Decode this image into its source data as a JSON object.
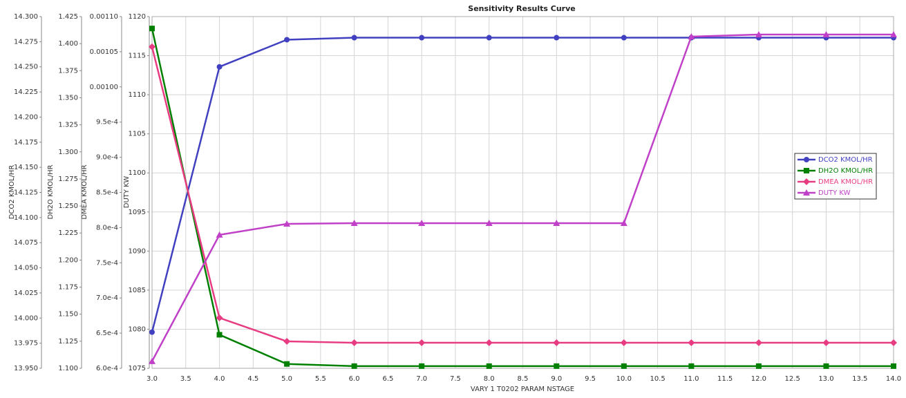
{
  "chart_data": {
    "type": "line",
    "title": "Sensitivity Results Curve",
    "xlabel": "VARY   1 T0202 PARAM NSTAGE",
    "ylabel": "DCO2 KMOL/HR",
    "y2label": "DH2O KMOL/HR",
    "y3label": "DMEA KMOL/HR",
    "y4label": "DUTY KW",
    "grid": true,
    "legend": "right",
    "x": [
      3,
      4,
      5,
      6,
      7,
      8,
      9,
      10,
      11,
      12,
      13,
      14
    ],
    "xlim": [
      3,
      14
    ],
    "xticks": [
      {
        "value": 3,
        "label": "3.0"
      },
      3.5,
      {
        "value": 4,
        "label": "4.0"
      },
      4.5,
      {
        "value": 5,
        "label": "5.0"
      },
      5.5,
      {
        "value": 6,
        "label": "6.0"
      },
      6.5,
      {
        "value": 7,
        "label": "7.0"
      },
      7.5,
      {
        "value": 8,
        "label": "8.0"
      },
      8.5,
      {
        "value": 9,
        "label": "9.0"
      },
      9.5,
      {
        "value": 10,
        "label": "10.0"
      },
      10.5,
      {
        "value": 11,
        "label": "11.0"
      },
      11.5,
      {
        "value": 12,
        "label": "12.0"
      },
      12.5,
      {
        "value": 13,
        "label": "13.0"
      },
      13.5,
      {
        "value": 14,
        "label": "14.0"
      }
    ],
    "ylim": [
      13.95,
      14.3
    ],
    "yticks": [
      {
        "value": 13.95,
        "label": "13.950"
      },
      13.975,
      {
        "value": 14.0,
        "label": "14.000"
      },
      14.025,
      {
        "value": 14.05,
        "label": "14.050"
      },
      14.075,
      {
        "value": 14.1,
        "label": "14.100"
      },
      14.125,
      {
        "value": 14.15,
        "label": "14.150"
      },
      14.175,
      {
        "value": 14.2,
        "label": "14.200"
      },
      14.225,
      {
        "value": 14.25,
        "label": "14.250"
      },
      14.275,
      {
        "value": 14.3,
        "label": "14.300"
      }
    ],
    "y2lim": [
      1.1,
      1.425
    ],
    "y2ticks": [
      {
        "value": 1.1,
        "label": "1.100"
      },
      1.125,
      {
        "value": 1.15,
        "label": "1.150"
      },
      1.175,
      {
        "value": 1.2,
        "label": "1.200"
      },
      1.225,
      {
        "value": 1.25,
        "label": "1.250"
      },
      1.275,
      {
        "value": 1.3,
        "label": "1.300"
      },
      1.325,
      {
        "value": 1.35,
        "label": "1.350"
      },
      1.375,
      {
        "value": 1.4,
        "label": "1.400"
      },
      1.425
    ],
    "y3lim": [
      0.0006,
      0.0011
    ],
    "y3ticks": [
      {
        "value": 0.0006,
        "label": "6.0e-4"
      },
      {
        "value": 0.00065,
        "label": "6.5e-4"
      },
      {
        "value": 0.0007,
        "label": "7.0e-4"
      },
      {
        "value": 0.00075,
        "label": "7.5e-4"
      },
      {
        "value": 0.0008,
        "label": "8.0e-4"
      },
      {
        "value": 0.00085,
        "label": "8.5e-4"
      },
      {
        "value": 0.0009,
        "label": "9.0e-4"
      },
      {
        "value": 0.00095,
        "label": "9.5e-4"
      },
      {
        "value": 0.001,
        "label": "0.00100"
      },
      0.00105,
      {
        "value": 0.0011,
        "label": "0.00110"
      }
    ],
    "y4lim": [
      1075,
      1120
    ],
    "y4ticks": [
      1075,
      1080,
      1085,
      1090,
      1095,
      1100,
      1105,
      1110,
      1115,
      1120
    ],
    "series": [
      {
        "name": "DCO2 KMOL/HR",
        "color": "#4040c0",
        "marker": "circle",
        "axis": "y",
        "values": [
          13.986,
          14.25,
          14.277,
          14.279,
          14.279,
          14.279,
          14.279,
          14.279,
          14.279,
          14.279,
          14.279,
          14.279
        ]
      },
      {
        "name": "DH2O KMOL/HR",
        "color": "#008000",
        "marker": "square",
        "axis": "y2",
        "values": [
          1.414,
          1.131,
          1.104,
          1.102,
          1.102,
          1.102,
          1.102,
          1.102,
          1.102,
          1.102,
          1.102,
          1.102
        ]
      },
      {
        "name": "DMEA KMOL/HR",
        "color": "#e83c82",
        "marker": "diamond",
        "axis": "y3",
        "values": [
          0.001057,
          0.0006717,
          0.0006383,
          0.0006363,
          0.0006363,
          0.0006363,
          0.0006363,
          0.0006363,
          0.0006363,
          0.0006363,
          0.0006363,
          0.0006363
        ]
      },
      {
        "name": "DUTY KW",
        "color": "#c040c8",
        "marker": "triangle",
        "axis": "y4",
        "values": [
          1075.9,
          1092.07,
          1093.48,
          1093.57,
          1093.57,
          1093.57,
          1093.57,
          1093.57,
          1117.44,
          1117.7,
          1117.7,
          1117.7
        ]
      }
    ]
  }
}
